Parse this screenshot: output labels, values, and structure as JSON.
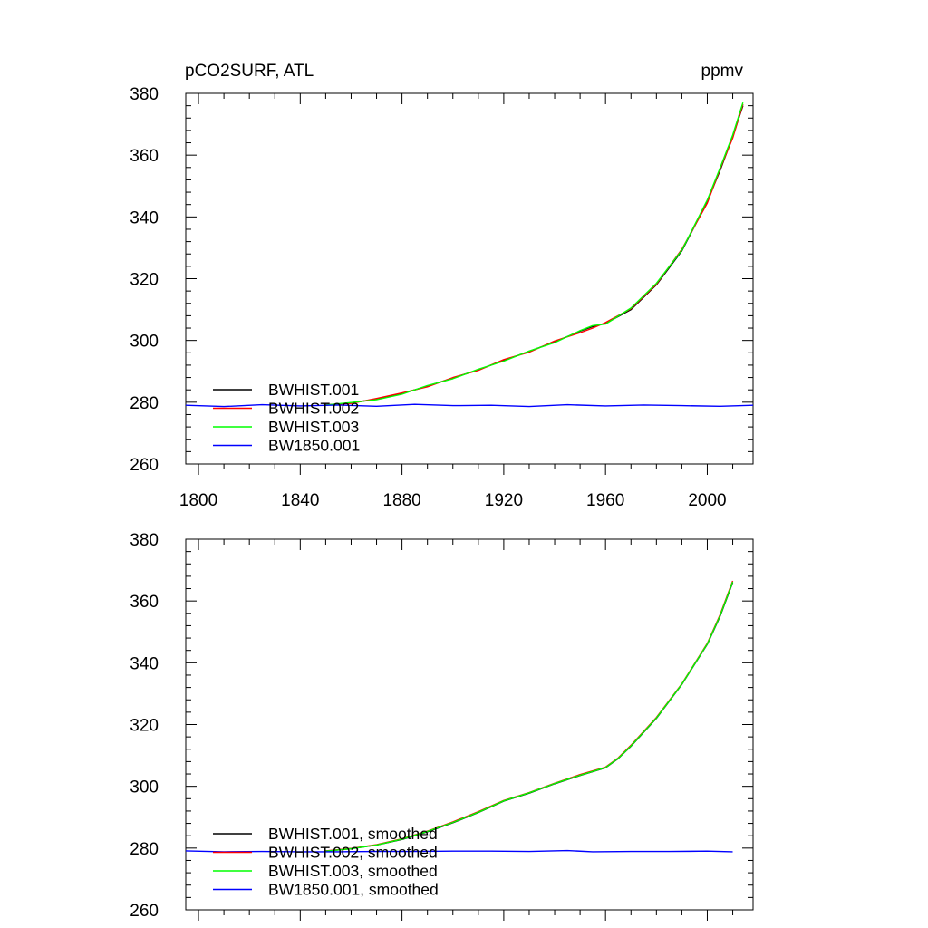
{
  "chart_data": [
    {
      "type": "line",
      "title_left": "pCO2SURF, ATL",
      "title_right": "ppmv",
      "xlim": [
        1795,
        2018
      ],
      "ylim": [
        260,
        380
      ],
      "xticks": [
        1800,
        1840,
        1880,
        1920,
        1960,
        2000
      ],
      "yticks": [
        260,
        280,
        300,
        320,
        340,
        360,
        380
      ],
      "xtick_labels": [
        "1800",
        "1840",
        "1880",
        "1920",
        "1960",
        "2000"
      ],
      "ytick_labels": [
        "260",
        "280",
        "300",
        "320",
        "340",
        "360",
        "380"
      ],
      "legend_position": "lower-left",
      "series": [
        {
          "name": "BWHIST.001",
          "color": "#000000",
          "x": [
            1850,
            1860,
            1870,
            1880,
            1890,
            1900,
            1910,
            1920,
            1930,
            1940,
            1950,
            1955,
            1960,
            1970,
            1980,
            1990,
            2000,
            2005,
            2010,
            2014
          ],
          "y": [
            279.0,
            279.8,
            281.0,
            282.8,
            285.2,
            287.8,
            290.5,
            293.5,
            296.5,
            299.5,
            303.0,
            304.5,
            305.5,
            310.0,
            318.0,
            329.0,
            345.0,
            355.0,
            366.0,
            376.0
          ]
        },
        {
          "name": "BWHIST.002",
          "color": "#ff0000",
          "x": [
            1850,
            1860,
            1870,
            1880,
            1890,
            1900,
            1910,
            1920,
            1930,
            1940,
            1950,
            1955,
            1960,
            1970,
            1980,
            1990,
            2000,
            2005,
            2010,
            2014
          ],
          "y": [
            279.2,
            279.6,
            281.2,
            283.0,
            285.0,
            288.0,
            290.3,
            293.8,
            296.2,
            299.8,
            302.5,
            304.0,
            305.8,
            310.3,
            318.2,
            329.5,
            344.5,
            355.5,
            365.5,
            376.5
          ]
        },
        {
          "name": "BWHIST.003",
          "color": "#00ff00",
          "x": [
            1850,
            1860,
            1870,
            1880,
            1890,
            1900,
            1910,
            1920,
            1930,
            1940,
            1950,
            1955,
            1960,
            1970,
            1980,
            1990,
            2000,
            2005,
            2010,
            2014
          ],
          "y": [
            279.1,
            279.9,
            280.8,
            282.6,
            285.4,
            287.6,
            290.7,
            293.3,
            296.6,
            299.3,
            303.2,
            304.8,
            305.3,
            310.5,
            318.5,
            329.2,
            345.5,
            355.8,
            366.5,
            377.0
          ]
        },
        {
          "name": "BW1850.001",
          "color": "#0000ff",
          "x": [
            1795,
            1810,
            1825,
            1840,
            1855,
            1870,
            1885,
            1900,
            1915,
            1930,
            1945,
            1960,
            1975,
            1990,
            2005,
            2018
          ],
          "y": [
            279.0,
            278.6,
            279.2,
            278.8,
            279.1,
            278.7,
            279.3,
            278.9,
            279.0,
            278.6,
            279.2,
            278.8,
            279.1,
            278.9,
            278.7,
            279.0
          ]
        }
      ]
    },
    {
      "type": "line",
      "xlim": [
        1795,
        2018
      ],
      "ylim": [
        260,
        380
      ],
      "xticks": [
        1800,
        1840,
        1880,
        1920,
        1960,
        2000
      ],
      "yticks": [
        260,
        280,
        300,
        320,
        340,
        360,
        380
      ],
      "ytick_labels": [
        "260",
        "280",
        "300",
        "320",
        "340",
        "360",
        "380"
      ],
      "legend_position": "lower-left",
      "series": [
        {
          "name": "BWHIST.001, smoothed",
          "color": "#000000",
          "x": [
            1850,
            1860,
            1870,
            1880,
            1890,
            1900,
            1910,
            1920,
            1930,
            1940,
            1950,
            1960,
            1965,
            1970,
            1980,
            1990,
            2000,
            2005,
            2010
          ],
          "y": [
            279.0,
            279.8,
            281.0,
            282.8,
            285.3,
            288.2,
            291.5,
            295.2,
            297.8,
            300.8,
            303.5,
            306.0,
            309.0,
            313.0,
            322.0,
            333.0,
            346.0,
            355.0,
            366.0
          ]
        },
        {
          "name": "BWHIST.002, smoothed",
          "color": "#ff0000",
          "x": [
            1850,
            1860,
            1870,
            1880,
            1890,
            1900,
            1910,
            1920,
            1930,
            1940,
            1950,
            1960,
            1965,
            1970,
            1980,
            1990,
            2000,
            2005,
            2010
          ],
          "y": [
            279.1,
            279.9,
            281.1,
            283.0,
            285.5,
            288.5,
            291.8,
            295.4,
            298.0,
            301.0,
            303.8,
            306.2,
            309.2,
            313.3,
            322.3,
            333.2,
            346.3,
            355.5,
            366.5
          ]
        },
        {
          "name": "BWHIST.003, smoothed",
          "color": "#00ff00",
          "x": [
            1850,
            1860,
            1870,
            1880,
            1890,
            1900,
            1910,
            1920,
            1930,
            1940,
            1950,
            1960,
            1965,
            1970,
            1980,
            1990,
            2000,
            2005,
            2010
          ],
          "y": [
            279.0,
            279.8,
            281.0,
            282.9,
            285.4,
            288.3,
            291.6,
            295.3,
            297.9,
            300.9,
            303.6,
            306.1,
            309.1,
            313.1,
            322.1,
            333.1,
            346.1,
            355.2,
            366.2
          ]
        },
        {
          "name": "BW1850.001, smoothed",
          "color": "#0000ff",
          "x": [
            1795,
            1810,
            1825,
            1840,
            1855,
            1870,
            1885,
            1900,
            1915,
            1930,
            1945,
            1955,
            1970,
            1985,
            2000,
            2010
          ],
          "y": [
            279.1,
            278.8,
            278.9,
            278.8,
            278.8,
            278.9,
            278.9,
            279.0,
            279.0,
            278.9,
            279.2,
            278.8,
            278.9,
            278.9,
            279.0,
            278.8
          ]
        }
      ]
    }
  ]
}
